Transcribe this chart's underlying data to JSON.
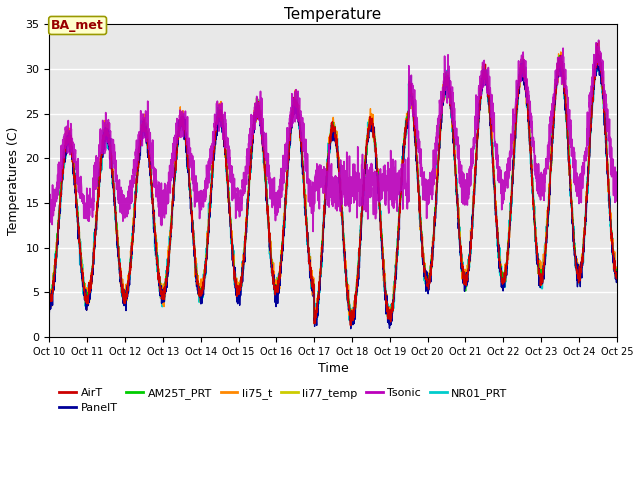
{
  "title": "Temperature",
  "xlabel": "Time",
  "ylabel": "Temperatures (C)",
  "ylim": [
    0,
    35
  ],
  "xlim_days": [
    10,
    25
  ],
  "xtick_labels": [
    "Oct 10",
    "Oct 11",
    "Oct 12",
    "Oct 13",
    "Oct 14",
    "Oct 15",
    "Oct 16",
    "Oct 17",
    "Oct 18",
    "Oct 19",
    "Oct 20",
    "Oct 21",
    "Oct 22",
    "Oct 23",
    "Oct 24",
    "Oct 25"
  ],
  "bg_color": "#e8e8e8",
  "fig_color": "#ffffff",
  "legend_entries": [
    "AirT",
    "PanelT",
    "AM25T_PRT",
    "li75_t",
    "li77_temp",
    "Tsonic",
    "NR01_PRT"
  ],
  "legend_colors": [
    "#cc0000",
    "#000099",
    "#00cc00",
    "#ff8800",
    "#cccc00",
    "#bb00bb",
    "#00cccc"
  ],
  "annotation_text": "BA_met",
  "annotation_color": "#990000",
  "annotation_bg": "#ffffcc",
  "annotation_edge": "#999900",
  "n_points": 3000
}
